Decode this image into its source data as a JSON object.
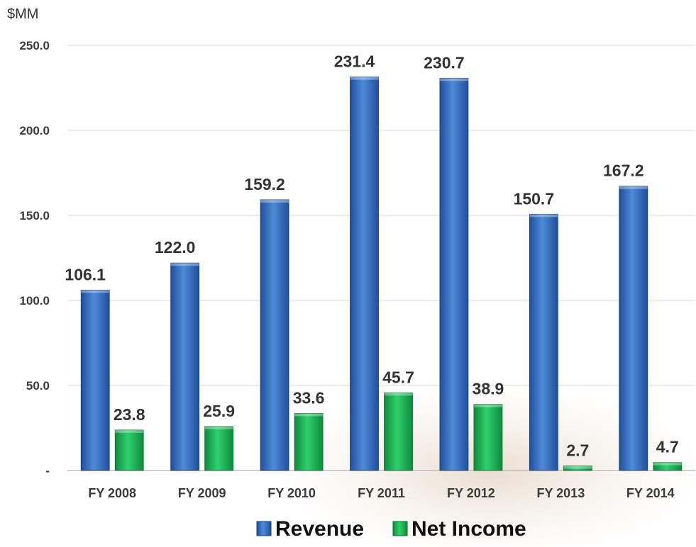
{
  "chart_data": {
    "type": "bar",
    "unit_label": "$MM",
    "categories": [
      "FY 2008",
      "FY 2009",
      "FY 2010",
      "FY 2011",
      "FY 2012",
      "FY 2013",
      "FY 2014"
    ],
    "series": [
      {
        "name": "Revenue",
        "values": [
          106.1,
          122.0,
          159.2,
          231.4,
          230.7,
          150.7,
          167.2
        ],
        "color": "#3c74c4",
        "labels": [
          "106.1",
          "122.0",
          "159.2",
          "231.4",
          "230.7",
          "150.7",
          "167.2"
        ]
      },
      {
        "name": "Net Income",
        "values": [
          23.8,
          25.9,
          33.6,
          45.7,
          38.9,
          2.7,
          4.7
        ],
        "color": "#18b85a",
        "labels": [
          "23.8",
          "25.9",
          "33.6",
          "45.7",
          "38.9",
          "2.7",
          "4.7"
        ]
      }
    ],
    "ylim": [
      0,
      250
    ],
    "y_ticks": [
      {
        "value": 0,
        "label": "-"
      },
      {
        "value": 50,
        "label": "50.0"
      },
      {
        "value": 100,
        "label": "100.0"
      },
      {
        "value": 150,
        "label": "150.0"
      },
      {
        "value": 200,
        "label": "200.0"
      },
      {
        "value": 250,
        "label": "250.0"
      }
    ],
    "grid": true,
    "legend_position": "bottom"
  }
}
